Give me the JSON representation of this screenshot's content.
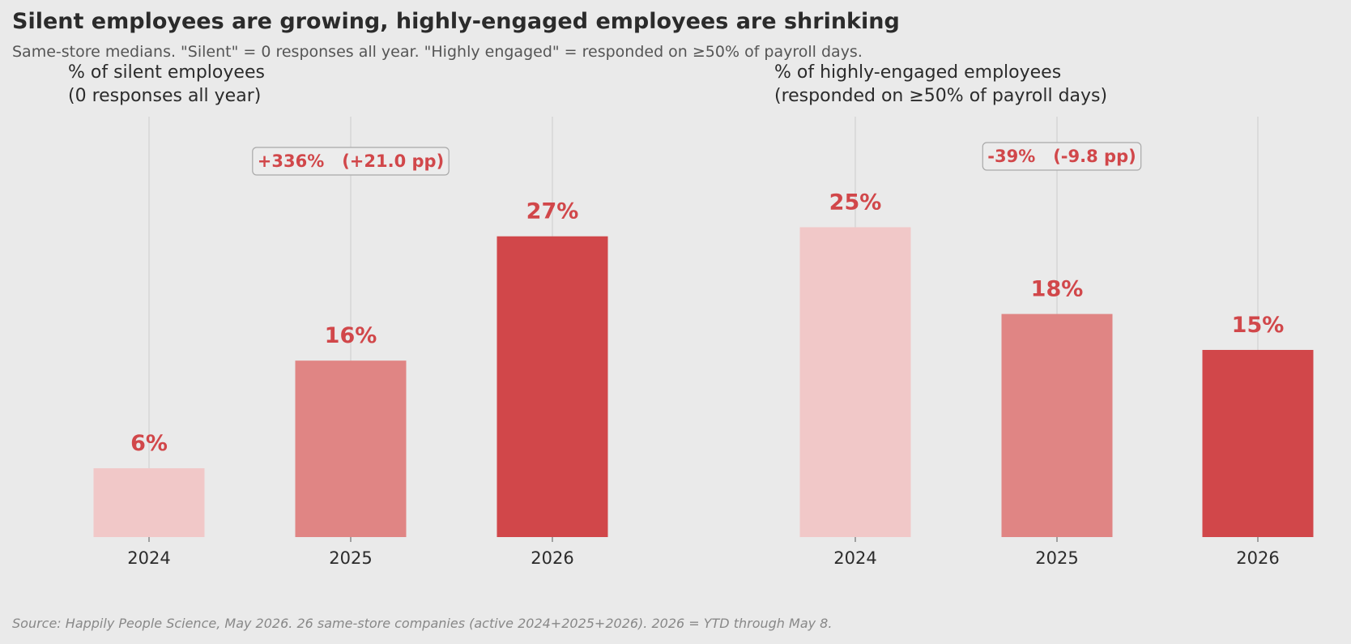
{
  "header": {
    "title": "Silent employees are growing, highly-engaged employees are shrinking",
    "subtitle": "Same-store medians. \"Silent\" = 0 responses all year. \"Highly engaged\" = responded on ≥50% of payroll days."
  },
  "footer": {
    "source": "Source: Happily People Science, May 2026. 26 same-store companies (active 2024+2025+2026). 2026 = YTD through May 8."
  },
  "colors": {
    "background": "#eaeaea",
    "bar_light": "#f1c8c8",
    "bar_mid": "#e08584",
    "bar_dark": "#d1474a",
    "accent_text": "#d1474a",
    "gridline": "#cccccc"
  },
  "chart_data": [
    {
      "type": "bar",
      "title_lines": [
        "% of silent employees",
        "(0 responses all year)"
      ],
      "categories": [
        "2024",
        "2025",
        "2026"
      ],
      "values": [
        6.2,
        15.9,
        27.1
      ],
      "value_labels": [
        "6%",
        "16%",
        "27%"
      ],
      "change_label": "+336%   (+21.0 pp)",
      "ylim": [
        0,
        38
      ],
      "grid": "vertical lines at categories",
      "bar_colors": [
        "#f1c8c8",
        "#e08584",
        "#d1474a"
      ]
    },
    {
      "type": "bar",
      "title_lines": [
        "% of highly-engaged employees",
        "(responded on ≥50% of payroll days)"
      ],
      "categories": [
        "2024",
        "2025",
        "2026"
      ],
      "values": [
        25.0,
        18.0,
        15.1
      ],
      "value_labels": [
        "25%",
        "18%",
        "15%"
      ],
      "change_label": "-39%   (-9.8 pp)",
      "ylim": [
        0,
        34
      ],
      "grid": "vertical lines at categories",
      "bar_colors": [
        "#f1c8c8",
        "#e08584",
        "#d1474a"
      ]
    }
  ]
}
